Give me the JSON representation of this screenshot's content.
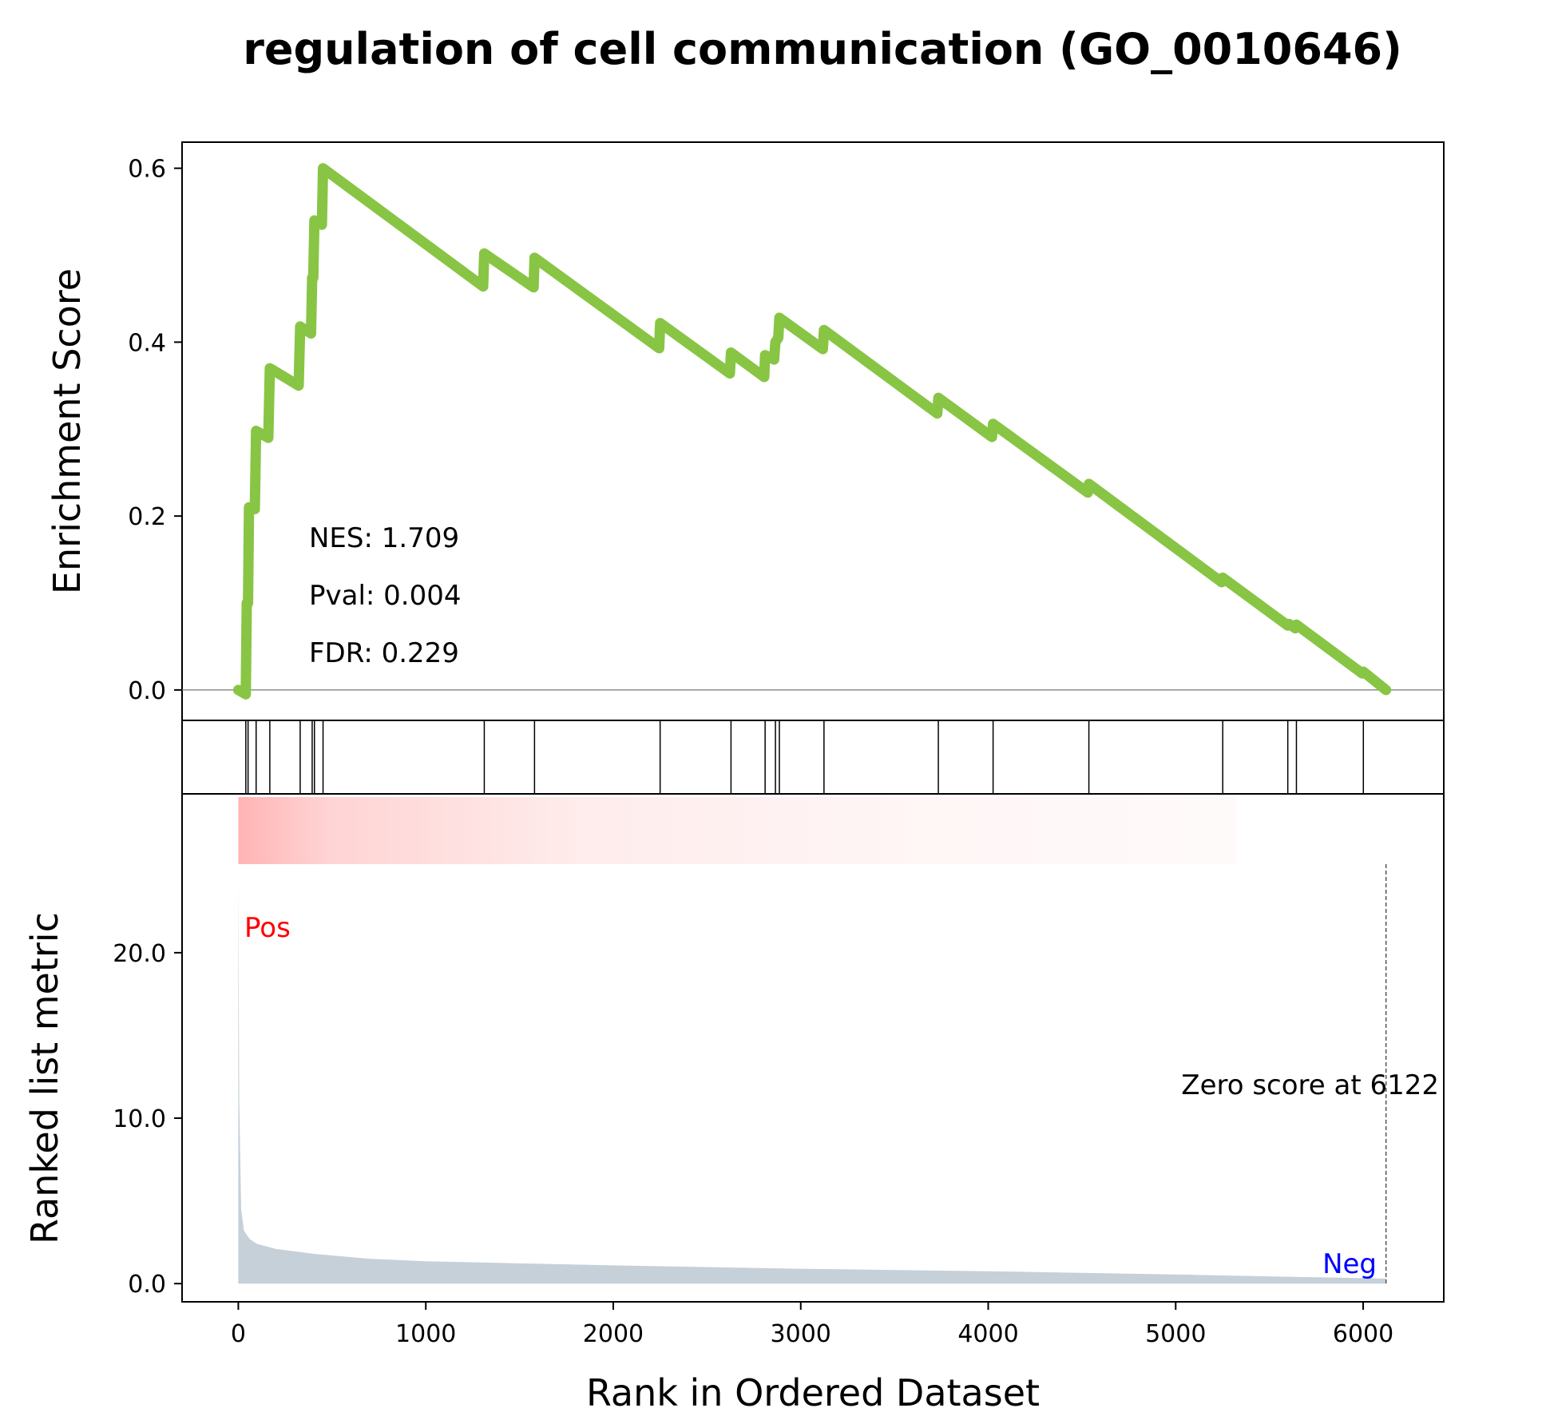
{
  "chart_data": {
    "type": "line",
    "title": "regulation of cell communication (GO_0010646)",
    "xlabel": "Rank in Ordered Dataset",
    "xlim": [
      -300,
      6430
    ],
    "x_ticks": [
      0,
      1000,
      2000,
      3000,
      4000,
      5000,
      6000
    ],
    "x_tick_labels": [
      "0",
      "1000",
      "2000",
      "3000",
      "4000",
      "5000",
      "6000"
    ],
    "enrichment": {
      "ylabel": "Enrichment Score",
      "ylim": [
        -0.035,
        0.63
      ],
      "y_ticks": [
        0.0,
        0.2,
        0.4,
        0.6
      ],
      "y_tick_labels": [
        "0.0",
        "0.2",
        "0.4",
        "0.6"
      ],
      "line_color": "#88c544",
      "series": [
        {
          "x": [
            0,
            40,
            45,
            52,
            57,
            88,
            95,
            160,
            168,
            322,
            330,
            388,
            394,
            400,
            406,
            446,
            452,
            1306,
            1312,
            1575,
            1580,
            2245,
            2250,
            2622,
            2628,
            2805,
            2810,
            2858,
            2865,
            2880,
            2886,
            3118,
            3124,
            3728,
            3734,
            4020,
            4026,
            4531,
            4537,
            5245,
            5251,
            5598,
            5604,
            5638,
            5644,
            5995,
            6001,
            6122
          ],
          "y": [
            0.0,
            -0.005,
            0.1,
            0.1,
            0.21,
            0.208,
            0.298,
            0.29,
            0.37,
            0.35,
            0.418,
            0.41,
            0.474,
            0.474,
            0.54,
            0.535,
            0.6,
            0.464,
            0.502,
            0.463,
            0.497,
            0.393,
            0.422,
            0.364,
            0.388,
            0.36,
            0.385,
            0.38,
            0.4,
            0.405,
            0.428,
            0.392,
            0.414,
            0.318,
            0.336,
            0.291,
            0.306,
            0.227,
            0.237,
            0.124,
            0.129,
            0.074,
            0.076,
            0.071,
            0.075,
            0.019,
            0.021,
            0.0
          ]
        }
      ],
      "hits": [
        40,
        52,
        95,
        168,
        330,
        394,
        406,
        452,
        1312,
        1580,
        2250,
        2628,
        2810,
        2865,
        2886,
        3124,
        3734,
        4026,
        4537,
        5251,
        5598,
        5644,
        6001
      ],
      "annotations": [
        "NES: 1.709",
        "Pval: 0.004",
        "FDR: 0.229"
      ]
    },
    "ranked_metric": {
      "ylabel": "Ranked list metric",
      "ylim": [
        -1.1,
        29.6
      ],
      "y_ticks": [
        0.0,
        10.0,
        20.0
      ],
      "y_tick_labels": [
        "0.0",
        "10.0",
        "20.0"
      ],
      "fill_color": "#c6d0d8",
      "x": [
        0,
        5,
        15,
        30,
        60,
        100,
        200,
        400,
        700,
        1000,
        2000,
        3000,
        4000,
        5000,
        6000,
        6122
      ],
      "y": [
        24.5,
        11.0,
        4.5,
        3.2,
        2.7,
        2.4,
        2.1,
        1.8,
        1.5,
        1.35,
        1.1,
        0.9,
        0.75,
        0.55,
        0.33,
        0.3
      ],
      "pos_label": "Pos",
      "neg_label": "Neg",
      "pos_color": "#ff0000",
      "neg_color": "#0000ff",
      "zero_score_label": "Zero score at 6122",
      "zero_score_at": 6122
    }
  }
}
